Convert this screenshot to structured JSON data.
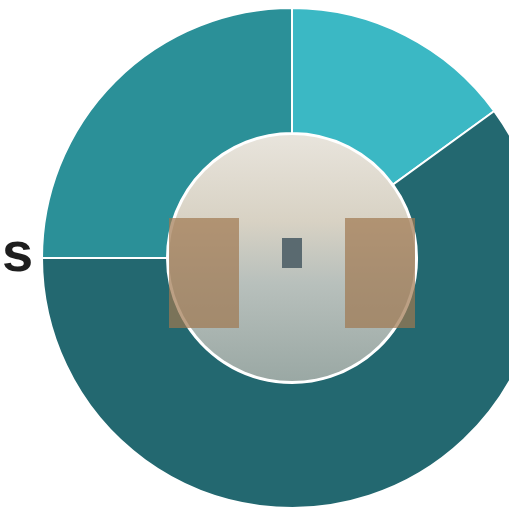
{
  "chart_data": {
    "type": "pie",
    "categories": [
      null,
      null,
      null
    ],
    "values": [
      15,
      60,
      25
    ],
    "colors": [
      "#3bb8c4",
      "#236870",
      "#2b9098"
    ],
    "annotations": [
      "s"
    ],
    "legend": false,
    "data_labels": false
  }
}
